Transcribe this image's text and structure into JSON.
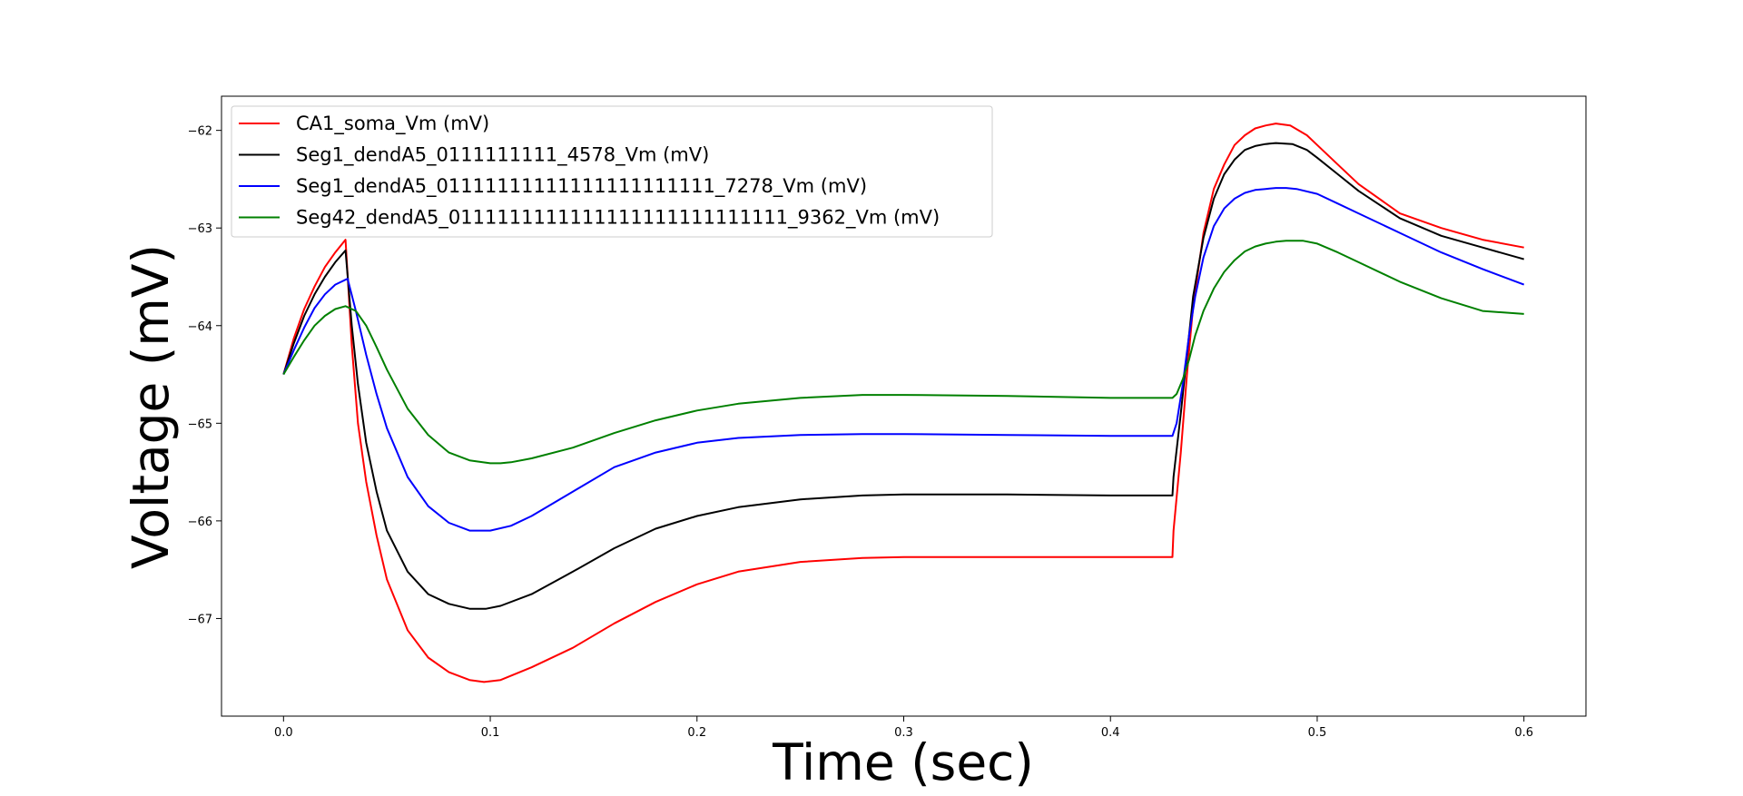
{
  "chart_data": {
    "type": "line",
    "title": "",
    "xlabel": "Time (sec)",
    "ylabel": "Voltage (mV)",
    "xlim": [
      -0.03,
      0.63
    ],
    "ylim": [
      -68.0,
      -61.65
    ],
    "xticks": [
      0.0,
      0.1,
      0.2,
      0.3,
      0.4,
      0.5,
      0.6
    ],
    "xtick_labels": [
      "0.0",
      "0.1",
      "0.2",
      "0.3",
      "0.4",
      "0.5",
      "0.6"
    ],
    "yticks": [
      -67,
      -66,
      -65,
      -64,
      -63,
      -62
    ],
    "ytick_labels": [
      "−67",
      "−66",
      "−65",
      "−64",
      "−63",
      "−62"
    ],
    "grid": false,
    "legend_position": "top-left",
    "series": [
      {
        "name": "CA1_soma_Vm (mV)",
        "color": "#ff0000",
        "x": [
          0.0,
          0.005,
          0.01,
          0.015,
          0.02,
          0.025,
          0.03,
          0.033,
          0.036,
          0.04,
          0.045,
          0.05,
          0.06,
          0.07,
          0.08,
          0.09,
          0.097,
          0.105,
          0.12,
          0.14,
          0.16,
          0.18,
          0.2,
          0.22,
          0.25,
          0.28,
          0.3,
          0.35,
          0.4,
          0.43,
          0.4305,
          0.434,
          0.437,
          0.44,
          0.445,
          0.45,
          0.455,
          0.46,
          0.465,
          0.47,
          0.475,
          0.48,
          0.487,
          0.495,
          0.5,
          0.51,
          0.52,
          0.54,
          0.56,
          0.58,
          0.6
        ],
        "y": [
          -64.5,
          -64.13,
          -63.83,
          -63.6,
          -63.4,
          -63.25,
          -63.12,
          -64.2,
          -65.0,
          -65.6,
          -66.15,
          -66.6,
          -67.12,
          -67.4,
          -67.55,
          -67.63,
          -67.65,
          -67.63,
          -67.5,
          -67.3,
          -67.05,
          -66.83,
          -66.65,
          -66.52,
          -66.42,
          -66.38,
          -66.37,
          -66.37,
          -66.37,
          -66.37,
          -66.1,
          -65.3,
          -64.5,
          -63.8,
          -63.05,
          -62.6,
          -62.35,
          -62.15,
          -62.05,
          -61.98,
          -61.95,
          -61.93,
          -61.95,
          -62.05,
          -62.15,
          -62.35,
          -62.55,
          -62.85,
          -63.0,
          -63.12,
          -63.2
        ]
      },
      {
        "name": "Seg1_dendA5_0111111111_4578_Vm (mV)",
        "color": "#000000",
        "x": [
          0.0,
          0.005,
          0.01,
          0.015,
          0.02,
          0.025,
          0.03,
          0.033,
          0.036,
          0.04,
          0.045,
          0.05,
          0.06,
          0.07,
          0.08,
          0.09,
          0.098,
          0.105,
          0.12,
          0.14,
          0.16,
          0.18,
          0.2,
          0.22,
          0.25,
          0.28,
          0.3,
          0.35,
          0.4,
          0.43,
          0.4305,
          0.434,
          0.437,
          0.44,
          0.445,
          0.45,
          0.455,
          0.46,
          0.465,
          0.47,
          0.475,
          0.48,
          0.488,
          0.495,
          0.5,
          0.51,
          0.52,
          0.54,
          0.56,
          0.58,
          0.6
        ],
        "y": [
          -64.5,
          -64.18,
          -63.9,
          -63.68,
          -63.5,
          -63.35,
          -63.23,
          -64.0,
          -64.6,
          -65.2,
          -65.7,
          -66.1,
          -66.52,
          -66.75,
          -66.85,
          -66.9,
          -66.9,
          -66.87,
          -66.75,
          -66.52,
          -66.28,
          -66.08,
          -65.95,
          -65.86,
          -65.78,
          -65.74,
          -65.73,
          -65.73,
          -65.74,
          -65.74,
          -65.55,
          -64.9,
          -64.3,
          -63.7,
          -63.1,
          -62.7,
          -62.45,
          -62.3,
          -62.2,
          -62.16,
          -62.14,
          -62.13,
          -62.14,
          -62.2,
          -62.28,
          -62.45,
          -62.62,
          -62.9,
          -63.08,
          -63.2,
          -63.32
        ]
      },
      {
        "name": "Seg1_dendA5_01111111111111111111111_7278_Vm (mV)",
        "color": "#0000ff",
        "x": [
          0.0,
          0.005,
          0.01,
          0.015,
          0.02,
          0.025,
          0.031,
          0.035,
          0.04,
          0.045,
          0.05,
          0.06,
          0.07,
          0.08,
          0.09,
          0.1,
          0.11,
          0.12,
          0.14,
          0.16,
          0.18,
          0.2,
          0.22,
          0.25,
          0.28,
          0.3,
          0.35,
          0.4,
          0.43,
          0.432,
          0.435,
          0.438,
          0.441,
          0.445,
          0.45,
          0.455,
          0.46,
          0.465,
          0.47,
          0.475,
          0.48,
          0.485,
          0.49,
          0.5,
          0.51,
          0.52,
          0.54,
          0.56,
          0.58,
          0.6
        ],
        "y": [
          -64.5,
          -64.25,
          -64.02,
          -63.82,
          -63.68,
          -63.58,
          -63.52,
          -63.85,
          -64.3,
          -64.7,
          -65.05,
          -65.55,
          -65.85,
          -66.02,
          -66.1,
          -66.1,
          -66.05,
          -65.95,
          -65.7,
          -65.45,
          -65.3,
          -65.2,
          -65.15,
          -65.12,
          -65.11,
          -65.11,
          -65.12,
          -65.13,
          -65.13,
          -65.0,
          -64.6,
          -64.1,
          -63.7,
          -63.3,
          -62.98,
          -62.8,
          -62.7,
          -62.64,
          -62.61,
          -62.6,
          -62.59,
          -62.59,
          -62.6,
          -62.65,
          -62.75,
          -62.85,
          -63.05,
          -63.25,
          -63.42,
          -63.58
        ]
      },
      {
        "name": "Seg42_dendA5_0111111111111111111111111111_9362_Vm (mV)",
        "color": "#008000",
        "x": [
          0.0,
          0.005,
          0.01,
          0.015,
          0.02,
          0.025,
          0.03,
          0.035,
          0.04,
          0.045,
          0.05,
          0.06,
          0.07,
          0.08,
          0.09,
          0.1,
          0.105,
          0.11,
          0.12,
          0.14,
          0.16,
          0.18,
          0.2,
          0.22,
          0.25,
          0.28,
          0.3,
          0.35,
          0.4,
          0.43,
          0.432,
          0.435,
          0.438,
          0.441,
          0.445,
          0.45,
          0.455,
          0.46,
          0.465,
          0.47,
          0.475,
          0.48,
          0.485,
          0.493,
          0.5,
          0.51,
          0.52,
          0.54,
          0.56,
          0.58,
          0.6
        ],
        "y": [
          -64.5,
          -64.32,
          -64.15,
          -64.0,
          -63.9,
          -63.83,
          -63.8,
          -63.85,
          -64.0,
          -64.22,
          -64.45,
          -64.85,
          -65.12,
          -65.3,
          -65.38,
          -65.41,
          -65.41,
          -65.4,
          -65.36,
          -65.25,
          -65.1,
          -64.97,
          -64.87,
          -64.8,
          -64.74,
          -64.71,
          -64.71,
          -64.72,
          -64.74,
          -64.74,
          -64.7,
          -64.55,
          -64.35,
          -64.1,
          -63.85,
          -63.62,
          -63.45,
          -63.33,
          -63.24,
          -63.19,
          -63.16,
          -63.14,
          -63.13,
          -63.13,
          -63.16,
          -63.25,
          -63.35,
          -63.55,
          -63.72,
          -63.85,
          -63.88
        ]
      }
    ]
  }
}
